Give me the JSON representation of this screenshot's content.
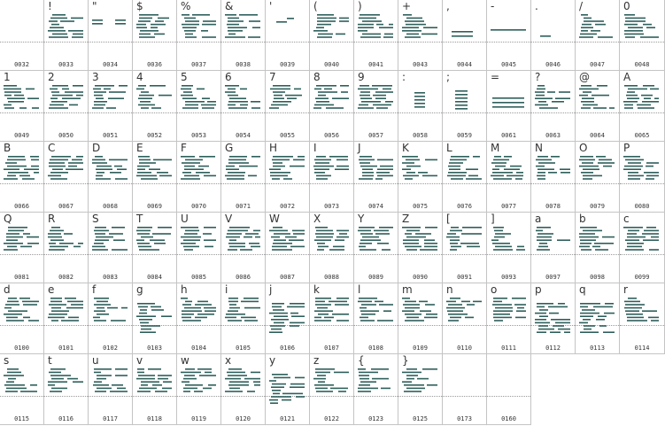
{
  "glyph_color": "#2e5f5b",
  "cells": [
    {
      "char": "",
      "code": "0032"
    },
    {
      "char": "!",
      "code": "0033"
    },
    {
      "char": "\"",
      "code": "0034"
    },
    {
      "char": "$",
      "code": "0036"
    },
    {
      "char": "%",
      "code": "0037"
    },
    {
      "char": "&",
      "code": "0038"
    },
    {
      "char": "'",
      "code": "0039"
    },
    {
      "char": "(",
      "code": "0040"
    },
    {
      "char": ")",
      "code": "0041"
    },
    {
      "char": "+",
      "code": "0043"
    },
    {
      "char": ",",
      "code": "0044"
    },
    {
      "char": "-",
      "code": "0045"
    },
    {
      "char": ".",
      "code": "0046"
    },
    {
      "char": "/",
      "code": "0047"
    },
    {
      "char": "0",
      "code": "0048"
    },
    {
      "char": "1",
      "code": "0049"
    },
    {
      "char": "2",
      "code": "0050"
    },
    {
      "char": "3",
      "code": "0051"
    },
    {
      "char": "4",
      "code": "0052"
    },
    {
      "char": "5",
      "code": "0053"
    },
    {
      "char": "6",
      "code": "0054"
    },
    {
      "char": "7",
      "code": "0055"
    },
    {
      "char": "8",
      "code": "0056"
    },
    {
      "char": "9",
      "code": "0057"
    },
    {
      "char": ":",
      "code": "0058"
    },
    {
      "char": ";",
      "code": "0059"
    },
    {
      "char": "=",
      "code": "0061"
    },
    {
      "char": "?",
      "code": "0063"
    },
    {
      "char": "@",
      "code": "0064"
    },
    {
      "char": "A",
      "code": "0065"
    },
    {
      "char": "B",
      "code": "0066"
    },
    {
      "char": "C",
      "code": "0067"
    },
    {
      "char": "D",
      "code": "0068"
    },
    {
      "char": "E",
      "code": "0069"
    },
    {
      "char": "F",
      "code": "0070"
    },
    {
      "char": "G",
      "code": "0071"
    },
    {
      "char": "H",
      "code": "0072"
    },
    {
      "char": "I",
      "code": "0073"
    },
    {
      "char": "J",
      "code": "0074"
    },
    {
      "char": "K",
      "code": "0075"
    },
    {
      "char": "L",
      "code": "0076"
    },
    {
      "char": "M",
      "code": "0077"
    },
    {
      "char": "N",
      "code": "0078"
    },
    {
      "char": "O",
      "code": "0079"
    },
    {
      "char": "P",
      "code": "0080"
    },
    {
      "char": "Q",
      "code": "0081"
    },
    {
      "char": "R",
      "code": "0082"
    },
    {
      "char": "S",
      "code": "0083"
    },
    {
      "char": "T",
      "code": "0084"
    },
    {
      "char": "U",
      "code": "0085"
    },
    {
      "char": "V",
      "code": "0086"
    },
    {
      "char": "W",
      "code": "0087"
    },
    {
      "char": "X",
      "code": "0088"
    },
    {
      "char": "Y",
      "code": "0089"
    },
    {
      "char": "Z",
      "code": "0090"
    },
    {
      "char": "[",
      "code": "0091"
    },
    {
      "char": "]",
      "code": "0093"
    },
    {
      "char": "a",
      "code": "0097"
    },
    {
      "char": "b",
      "code": "0098"
    },
    {
      "char": "c",
      "code": "0099"
    },
    {
      "char": "d",
      "code": "0100"
    },
    {
      "char": "e",
      "code": "0101"
    },
    {
      "char": "f",
      "code": "0102"
    },
    {
      "char": "g",
      "code": "0103"
    },
    {
      "char": "h",
      "code": "0104"
    },
    {
      "char": "i",
      "code": "0105"
    },
    {
      "char": "j",
      "code": "0106"
    },
    {
      "char": "k",
      "code": "0107"
    },
    {
      "char": "l",
      "code": "0108"
    },
    {
      "char": "m",
      "code": "0109"
    },
    {
      "char": "n",
      "code": "0110"
    },
    {
      "char": "o",
      "code": "0111"
    },
    {
      "char": "p",
      "code": "0112"
    },
    {
      "char": "q",
      "code": "0113"
    },
    {
      "char": "r",
      "code": "0114"
    },
    {
      "char": "s",
      "code": "0115"
    },
    {
      "char": "t",
      "code": "0116"
    },
    {
      "char": "u",
      "code": "0117"
    },
    {
      "char": "v",
      "code": "0118"
    },
    {
      "char": "w",
      "code": "0119"
    },
    {
      "char": "x",
      "code": "0120"
    },
    {
      "char": "y",
      "code": "0121"
    },
    {
      "char": "z",
      "code": "0122"
    },
    {
      "char": "{",
      "code": "0123"
    },
    {
      "char": "}",
      "code": "0125"
    },
    {
      "char": "",
      "code": "0173"
    },
    {
      "char": "",
      "code": "0160"
    }
  ]
}
